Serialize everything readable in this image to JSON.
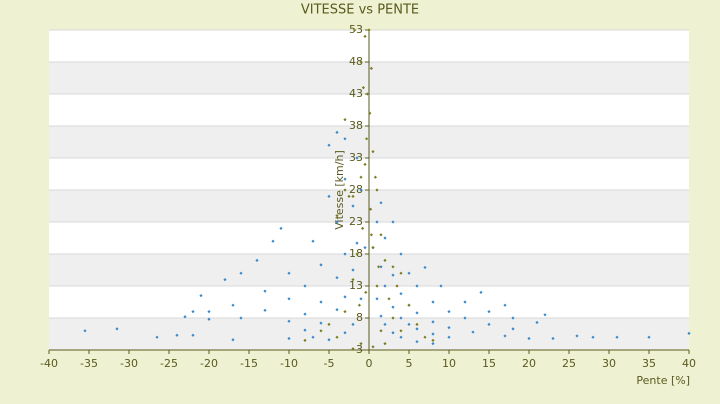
{
  "chart_data": {
    "type": "scatter",
    "title": "VITESSE vs PENTE",
    "x_label": "Pente [%]",
    "y_label": "Vitesse [km/h]",
    "xlim": [
      -40,
      40
    ],
    "xticks": [
      -40,
      -35,
      -30,
      -25,
      -20,
      -15,
      -10,
      -5,
      0,
      5,
      10,
      15,
      20,
      25,
      30,
      35,
      40
    ],
    "ylim": [
      3,
      53
    ],
    "yticks": [
      3,
      8,
      13,
      18,
      23,
      28,
      33,
      38,
      43,
      48,
      53
    ],
    "grid": true,
    "series": [
      {
        "color": "#3b88c9",
        "x": [
          0.5,
          1,
          1.5,
          2,
          3,
          4,
          6,
          8,
          1,
          1.5,
          2,
          3,
          4,
          5,
          6,
          8,
          10,
          1.5,
          2,
          3,
          4,
          5,
          6,
          8,
          10,
          3,
          4,
          5,
          6,
          8,
          10,
          12,
          15,
          18,
          7,
          9,
          12,
          15,
          18,
          21,
          -0.5,
          -1,
          -2,
          -3,
          -5,
          -1,
          -1.5,
          -2,
          -3,
          -4,
          -6,
          -8,
          -1.5,
          -2,
          -3,
          -4,
          -6,
          -8,
          -10,
          -3,
          -4,
          -6,
          -8,
          -10,
          -13,
          -16,
          -5,
          -7,
          -10,
          -13,
          -17,
          -20,
          -23,
          -35.5,
          -31.5,
          -26.5,
          -24,
          -22,
          -17,
          -10,
          -7,
          20,
          26,
          31,
          35,
          40,
          28,
          23,
          17,
          13,
          -21,
          -20,
          -18,
          -22,
          -12,
          -11,
          14,
          17,
          22,
          -14,
          -16,
          -3,
          -5,
          -4
        ],
        "values": [
          19,
          11,
          8.3,
          7,
          5.7,
          5,
          4.3,
          4,
          23,
          16,
          13,
          9.7,
          8,
          7,
          6.3,
          5.5,
          5,
          26,
          20.5,
          14.7,
          11.8,
          10,
          8.8,
          7.4,
          6.5,
          23,
          18,
          15,
          13,
          10.5,
          9,
          8,
          7,
          6.3,
          15.9,
          13,
          10.5,
          9,
          8,
          7.3,
          19,
          11,
          7,
          5.7,
          4.6,
          28,
          19.7,
          15.5,
          11.3,
          9.3,
          7.2,
          6.1,
          33,
          25.5,
          18,
          14.3,
          10.5,
          8.6,
          7.5,
          29.7,
          23,
          16.3,
          13,
          11,
          9.2,
          8,
          27,
          20,
          15,
          12.2,
          10,
          9,
          8.2,
          6,
          6.3,
          5,
          5.3,
          5.3,
          4.6,
          4.8,
          5,
          4.8,
          5.2,
          5,
          5,
          5.6,
          5,
          4.8,
          5.2,
          5.8,
          11.5,
          7.8,
          14,
          9,
          20,
          22,
          12,
          10,
          8.5,
          17,
          15,
          36,
          35,
          37
        ]
      },
      {
        "color": "#7d7d1f",
        "x": [
          -0.5,
          0,
          -1,
          0.3,
          -0.2,
          0.1,
          -0.3,
          0.5,
          -0.5,
          -1,
          1,
          -2,
          0.2,
          -0.8,
          1.5,
          0.5,
          -1.5,
          2,
          3,
          4,
          -2,
          1,
          -0.4,
          2.5,
          5,
          -3,
          3,
          6,
          -5,
          4,
          -6,
          7,
          -4,
          2,
          -1,
          8,
          -8,
          0.5,
          -2,
          1.5,
          -1.2,
          3.5,
          -3,
          -2.5,
          0.8,
          -0.7,
          1.2,
          0.3,
          -1.8,
          -4,
          -3
        ],
        "values": [
          52,
          53,
          48,
          47,
          43,
          40,
          36,
          34,
          32,
          30,
          28,
          27,
          25,
          22,
          21,
          19,
          18,
          17,
          16,
          15,
          14,
          13,
          12,
          11,
          10,
          9,
          8,
          7,
          7,
          6,
          6,
          5,
          5,
          4,
          4,
          4.5,
          4.5,
          3.5,
          3.2,
          6,
          10,
          13,
          39,
          27,
          30,
          44,
          16,
          21,
          53,
          24,
          28
        ]
      }
    ]
  }
}
